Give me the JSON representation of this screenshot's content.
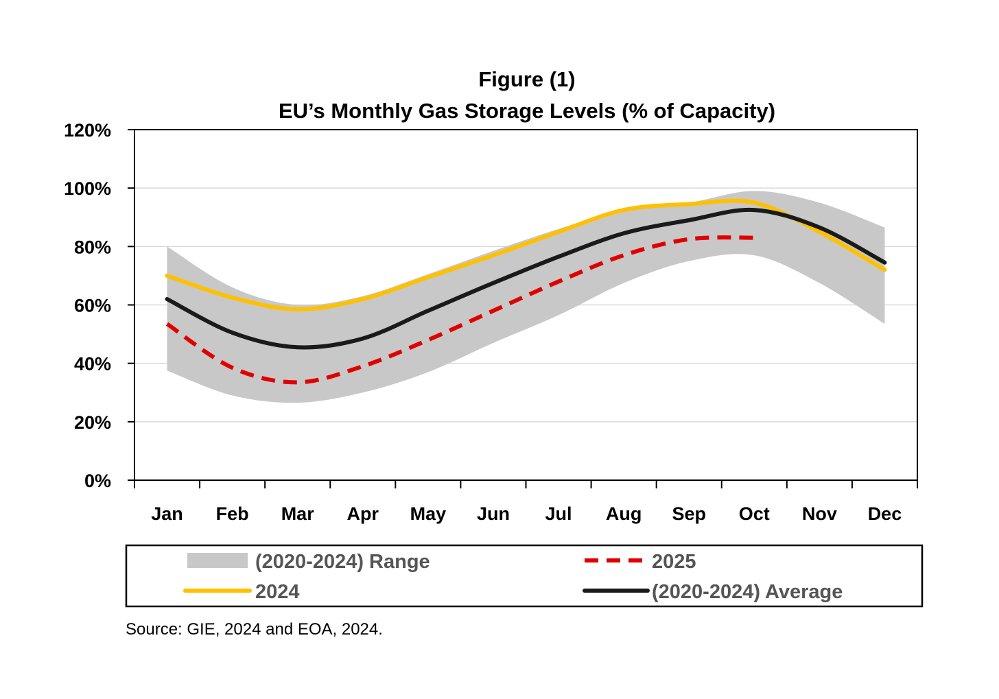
{
  "chart_data": {
    "type": "line",
    "title": "Figure (1)",
    "subtitle": "EU’s Monthly Gas Storage Levels (% of Capacity)",
    "xlabel": "",
    "ylabel": "",
    "categories": [
      "Jan",
      "Feb",
      "Mar",
      "Apr",
      "May",
      "Jun",
      "Jul",
      "Aug",
      "Sep",
      "Oct",
      "Nov",
      "Dec"
    ],
    "ylim": [
      0,
      120
    ],
    "y_ticks": [
      0,
      20,
      40,
      60,
      80,
      100,
      120
    ],
    "y_tick_labels": [
      "0%",
      "20%",
      "40%",
      "60%",
      "80%",
      "100%",
      "120%"
    ],
    "grid": true,
    "legend_position": "bottom",
    "range": {
      "name": "(2020-2024) Range",
      "color": "#c8c8c8",
      "low": [
        37.5,
        29,
        26.5,
        30,
        37,
        47,
        56.5,
        67.5,
        75,
        77,
        67.5,
        53.5
      ],
      "high": [
        80,
        66,
        60,
        63,
        70.5,
        78.5,
        86,
        92.5,
        95,
        99,
        95,
        86.5
      ]
    },
    "series": [
      {
        "name": "2024",
        "color": "#ffc000",
        "style": "solid",
        "values": [
          70,
          62.5,
          58.5,
          62,
          69.5,
          77,
          85,
          92.5,
          94.5,
          95,
          85,
          72
        ]
      },
      {
        "name": "2025",
        "color": "#e00000",
        "style": "dashed",
        "values": [
          53.5,
          38.5,
          33.5,
          39,
          48,
          58,
          68,
          77,
          82.5,
          83,
          null,
          null
        ]
      },
      {
        "name": "(2020-2024) Average",
        "color": "#1a1a1a",
        "style": "solid",
        "values": [
          62,
          50.5,
          45.5,
          48.5,
          58,
          67.5,
          76.5,
          84.5,
          89,
          92.5,
          86.5,
          74.5
        ]
      }
    ],
    "source": "Source: GIE, 2024 and EOA, 2024."
  }
}
